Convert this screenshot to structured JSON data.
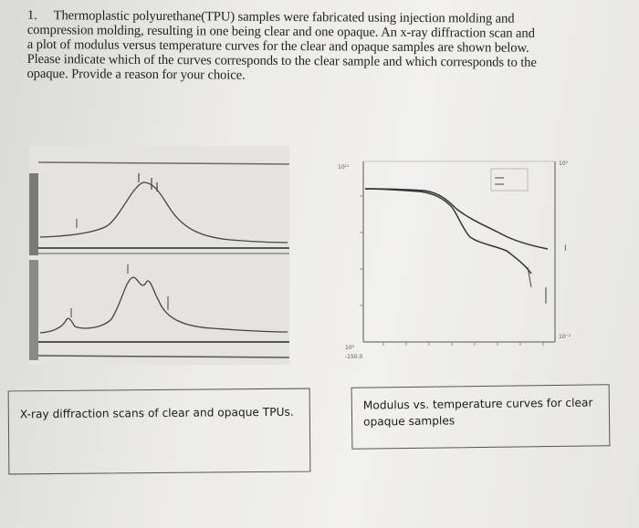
{
  "question": {
    "number": "1.",
    "lines": [
      "Thermoplastic polyurethane(TPU) samples were fabricated using injection molding and",
      "compression molding, resulting in one being clear and one opaque. An x-ray diffraction scan and",
      "a plot of modulus versus temperature curves for the clear and opaque samples are shown below.",
      "Please indicate which of the curves corresponds to the clear sample and which corresponds to the",
      "opaque. Provide a reason for your choice."
    ]
  },
  "captions": {
    "xrd": "X-ray diffraction scans of clear and opaque TPUs.",
    "modulus": "Modulus vs. temperature curves for clear opaque samples"
  },
  "modulus_axis": {
    "y_top_label": "10¹¹",
    "y_bottom_label": "10⁵",
    "x_first_label": "-150.0",
    "right_top_label": "10⁰",
    "right_bottom_label": "10⁻²",
    "right_mid_label": "I"
  }
}
